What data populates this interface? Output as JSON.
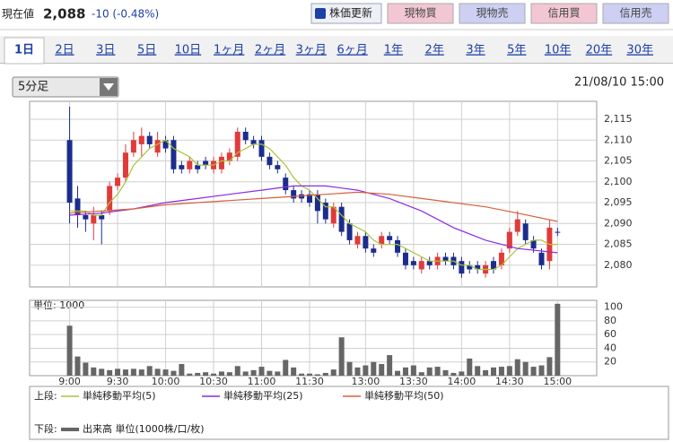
{
  "header": {
    "label": "現在値",
    "price": "2,088",
    "change": "-10 (-0.48%)"
  },
  "refresh_button": "株価更新",
  "buttons": [
    {
      "label": "現物買",
      "color": "#f2c7d3"
    },
    {
      "label": "現物売",
      "color": "#cdd0f3"
    },
    {
      "label": "信用買",
      "color": "#f2c7d3"
    },
    {
      "label": "信用売",
      "color": "#cdd0f3"
    }
  ],
  "tabs": [
    "1日",
    "2日",
    "3日",
    "5日",
    "10日",
    "1ヶ月",
    "2ヶ月",
    "3ヶ月",
    "6ヶ月",
    "1年",
    "2年",
    "3年",
    "5年",
    "10年",
    "20年",
    "30年"
  ],
  "active_tab": 0,
  "interval_select": "5分足",
  "datetime": "21/08/10 15:00",
  "legend_labels": {
    "upper": "上段:",
    "lower": "下段:"
  },
  "chart_data": [
    {
      "type": "candlestick",
      "up_color": "#e23a3a",
      "down_color": "#1b2d8c",
      "grid": true,
      "xlim": [
        -5,
        65.9
      ],
      "ylim": [
        2074.8,
        2119.3
      ],
      "yticks": [
        {
          "value": 2080,
          "label": "2,080"
        },
        {
          "value": 2085,
          "label": "2,085"
        },
        {
          "value": 2090,
          "label": "2,090"
        },
        {
          "value": 2095,
          "label": "2,095"
        },
        {
          "value": 2100,
          "label": "2,100"
        },
        {
          "value": 2105,
          "label": "2,105"
        },
        {
          "value": 2110,
          "label": "2,110"
        },
        {
          "value": 2115,
          "label": "2,115"
        }
      ],
      "open": [
        2110,
        2096,
        2092,
        2090,
        2092,
        2093,
        2099,
        2101,
        2107,
        2109,
        2111,
        2107,
        2110,
        2110,
        2104,
        2103,
        2104,
        2105,
        2103,
        2103,
        2105,
        2106,
        2112,
        2110,
        2110,
        2106,
        2104,
        2101,
        2098,
        2097,
        2097,
        2097,
        2095,
        2090,
        2094,
        2090,
        2085,
        2087,
        2084,
        2085,
        2087,
        2086,
        2083,
        2081,
        2079,
        2081,
        2080,
        2082,
        2082,
        2081,
        2080,
        2080,
        2078,
        2081,
        2080,
        2084,
        2088,
        2090,
        2086,
        2083,
        2081,
        2088
      ],
      "high": [
        2118,
        2099,
        2093,
        2094,
        2093,
        2100,
        2102,
        2109,
        2112,
        2113,
        2112,
        2112,
        2111,
        2111,
        2105,
        2106,
        2105,
        2106,
        2106,
        2107,
        2108,
        2113,
        2113,
        2111,
        2111,
        2107,
        2105,
        2102,
        2099,
        2098,
        2098,
        2098,
        2096,
        2095,
        2095,
        2091,
        2088,
        2088,
        2085,
        2088,
        2088,
        2087,
        2084,
        2082,
        2082,
        2082,
        2083,
        2083,
        2083,
        2082,
        2081,
        2081,
        2081,
        2082,
        2084,
        2089,
        2093,
        2091,
        2087,
        2084,
        2091,
        2089
      ],
      "low": [
        2090,
        2089,
        2088,
        2086,
        2085,
        2092,
        2098,
        2100,
        2106,
        2106,
        2108,
        2106,
        2107,
        2102,
        2102,
        2102,
        2102,
        2103,
        2102,
        2102,
        2104,
        2105,
        2109,
        2108,
        2105,
        2103,
        2102,
        2097,
        2095,
        2095,
        2094,
        2090,
        2090,
        2089,
        2087,
        2085,
        2084,
        2083,
        2082,
        2084,
        2085,
        2082,
        2079,
        2079,
        2078,
        2079,
        2079,
        2080,
        2079,
        2077,
        2078,
        2078,
        2077,
        2078,
        2079,
        2083,
        2087,
        2085,
        2083,
        2079,
        2079,
        2087
      ],
      "close": [
        2095,
        2092,
        2091,
        2092,
        2091,
        2099,
        2101,
        2107,
        2110,
        2111,
        2109,
        2110,
        2108,
        2103,
        2103,
        2105,
        2103,
        2104,
        2105,
        2106,
        2107,
        2112,
        2110,
        2109,
        2106,
        2104,
        2103,
        2098,
        2096,
        2096,
        2095,
        2093,
        2091,
        2094,
        2088,
        2086,
        2087,
        2084,
        2083,
        2087,
        2086,
        2083,
        2080,
        2080,
        2081,
        2080,
        2082,
        2081,
        2080,
        2078,
        2079,
        2079,
        2080,
        2079,
        2083,
        2088,
        2091,
        2086,
        2084,
        2080,
        2089,
        2088
      ],
      "series": [
        {
          "name": "単純移動平均(5)",
          "color": "#a9c43a",
          "values": [
            2093,
            2093,
            2093,
            2092,
            2092,
            2095,
            2097,
            2100,
            2104,
            2106,
            2108,
            2109,
            2110,
            2108,
            2107,
            2106,
            2104,
            2104,
            2104,
            2105,
            2105,
            2107,
            2108,
            2109,
            2109,
            2108,
            2106,
            2104,
            2101,
            2099,
            2098,
            2096,
            2094,
            2094,
            2092,
            2090,
            2089,
            2088,
            2086,
            2085,
            2085,
            2085,
            2084,
            2083,
            2082,
            2081,
            2081,
            2081,
            2081,
            2080,
            2080,
            2079,
            2079,
            2079,
            2080,
            2082,
            2084,
            2085,
            2086,
            2086,
            2085,
            2085
          ]
        },
        {
          "name": "単純移動平均(25)",
          "color": "#8a2be2",
          "x": [
            0,
            4,
            8,
            12,
            16,
            20,
            24,
            28,
            32,
            36,
            40,
            44,
            48,
            52,
            56,
            61
          ],
          "values": [
            2092,
            2092.5,
            2093.5,
            2095,
            2096,
            2097,
            2098,
            2099,
            2099,
            2098,
            2096,
            2093,
            2089,
            2086,
            2084,
            2083
          ]
        },
        {
          "name": "単純移動平均(50)",
          "color": "#d9603b",
          "x": [
            0,
            4,
            8,
            12,
            16,
            20,
            24,
            28,
            32,
            36,
            40,
            44,
            48,
            52,
            56,
            61
          ],
          "values": [
            2092.5,
            2093,
            2093.5,
            2094.5,
            2095,
            2095.5,
            2096,
            2096.5,
            2097,
            2097.5,
            2097,
            2096,
            2095,
            2094,
            2092.5,
            2090.5
          ]
        }
      ]
    },
    {
      "type": "bar",
      "unit_label": "単位: 1000",
      "grid": true,
      "xlim": [
        -5,
        65.9
      ],
      "ylim": [
        0,
        110
      ],
      "yticks": [
        20,
        40,
        60,
        80,
        100
      ],
      "xticks": [
        {
          "value": 0,
          "label": "9:00"
        },
        {
          "value": 6,
          "label": "9:30"
        },
        {
          "value": 12,
          "label": "10:00"
        },
        {
          "value": 18,
          "label": "10:30"
        },
        {
          "value": 24,
          "label": "11:00"
        },
        {
          "value": 30,
          "label": "11:30"
        },
        {
          "value": 37,
          "label": "13:00"
        },
        {
          "value": 43,
          "label": "13:30"
        },
        {
          "value": 49,
          "label": "14:00"
        },
        {
          "value": 55,
          "label": "14:30"
        },
        {
          "value": 61,
          "label": "15:00"
        }
      ],
      "series": [
        {
          "name": "出来高 単位(1000株/口/枚)",
          "color": "#666666",
          "values": [
            73,
            28,
            19,
            12,
            10,
            8,
            10,
            9,
            10,
            9,
            14,
            10,
            9,
            7,
            17,
            3,
            4,
            5,
            3,
            6,
            5,
            14,
            6,
            8,
            13,
            7,
            6,
            23,
            12,
            3,
            3,
            2,
            4,
            9,
            56,
            20,
            12,
            15,
            20,
            17,
            30,
            7,
            12,
            15,
            5,
            12,
            13,
            8,
            4,
            6,
            25,
            14,
            8,
            12,
            13,
            14,
            24,
            20,
            13,
            15,
            27,
            105
          ]
        }
      ]
    }
  ]
}
